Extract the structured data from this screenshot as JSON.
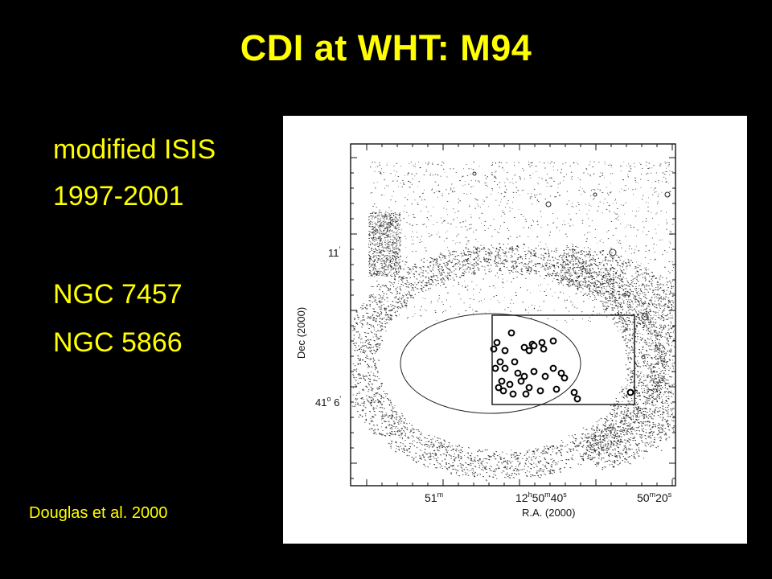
{
  "slide": {
    "title": "CDI at WHT: M94",
    "bullets": [
      "modified ISIS",
      "1997-2001",
      "NGC 7457",
      "NGC 5866"
    ],
    "citation": "Douglas et al. 2000",
    "text_color": "#ffff00",
    "background_color": "#000000"
  },
  "figure": {
    "ylabel": "Dec  (2000)",
    "y_ticks": [
      {
        "deg": "",
        "min": "11",
        "sec": ""
      },
      {
        "deg": "41",
        "min": "6",
        "sec": ""
      }
    ],
    "xlabel": "R.A.  (2000)",
    "x_ticks": [
      {
        "h": "",
        "m": "51",
        "s": ""
      },
      {
        "h": "12",
        "m": "50",
        "s": "40"
      },
      {
        "h": "",
        "m": "50",
        "s": "20"
      }
    ],
    "line_color": "#111111",
    "background_color": "#ffffff"
  }
}
